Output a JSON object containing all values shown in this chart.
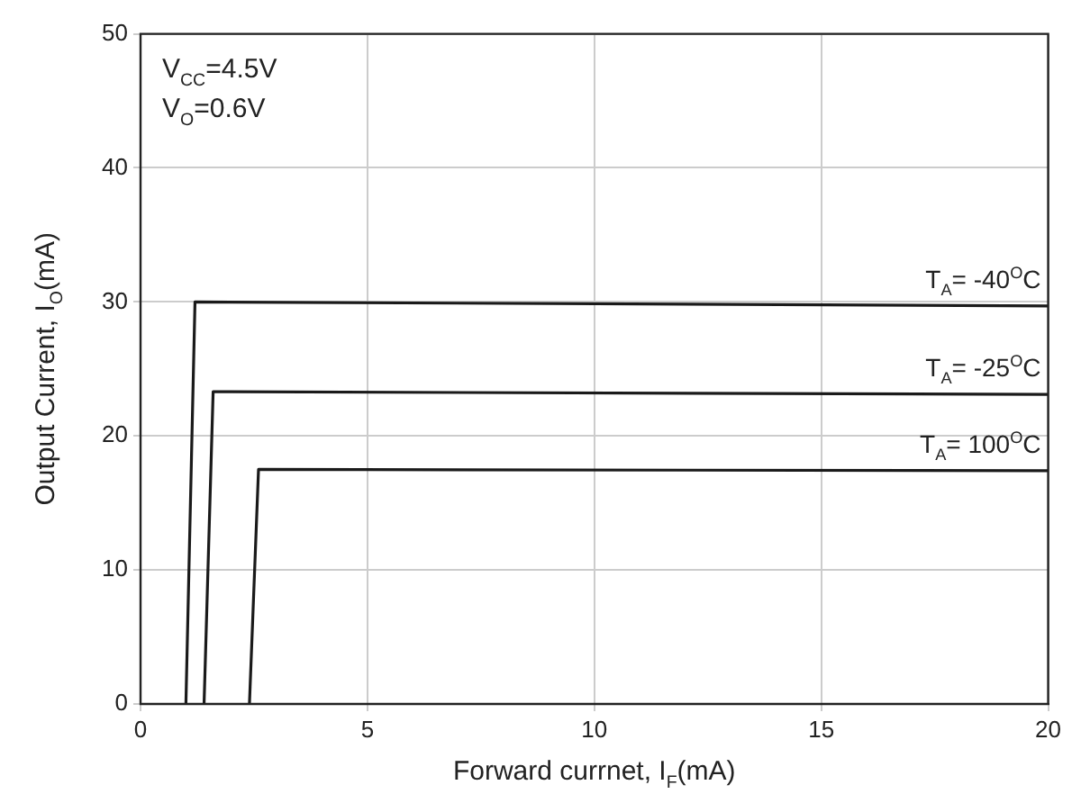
{
  "chart_data": {
    "type": "line",
    "xlabel": "Forward currnet, I$_{F}$(mA)",
    "ylabel": "Output Current, I$_{O}$(mA)",
    "annotations": [
      "V$_{CC}$=4.5V",
      "V$_{O}$=0.6V"
    ],
    "series": [
      {
        "name": "T$_{A}$= -40$^{O}$C",
        "color": "#1a1a1a",
        "x": [
          1.0,
          1.2,
          20
        ],
        "values": [
          0,
          30.0,
          29.7
        ]
      },
      {
        "name": "T$_{A}$= -25$^{O}$C",
        "color": "#1a1a1a",
        "x": [
          1.4,
          1.6,
          20
        ],
        "values": [
          0,
          23.3,
          23.1
        ]
      },
      {
        "name": "T$_{A}$= 100$^{O}$C",
        "color": "#1a1a1a",
        "x": [
          2.4,
          2.6,
          20
        ],
        "values": [
          0,
          17.5,
          17.4
        ]
      }
    ],
    "xlim": [
      0,
      20
    ],
    "xticks": [
      0,
      5,
      10,
      15,
      20
    ],
    "ylim": [
      0,
      50
    ],
    "yticks": [
      0,
      10,
      20,
      30,
      40,
      50
    ],
    "grid": true,
    "legend": false,
    "marker": "none",
    "line_style": "solid"
  }
}
